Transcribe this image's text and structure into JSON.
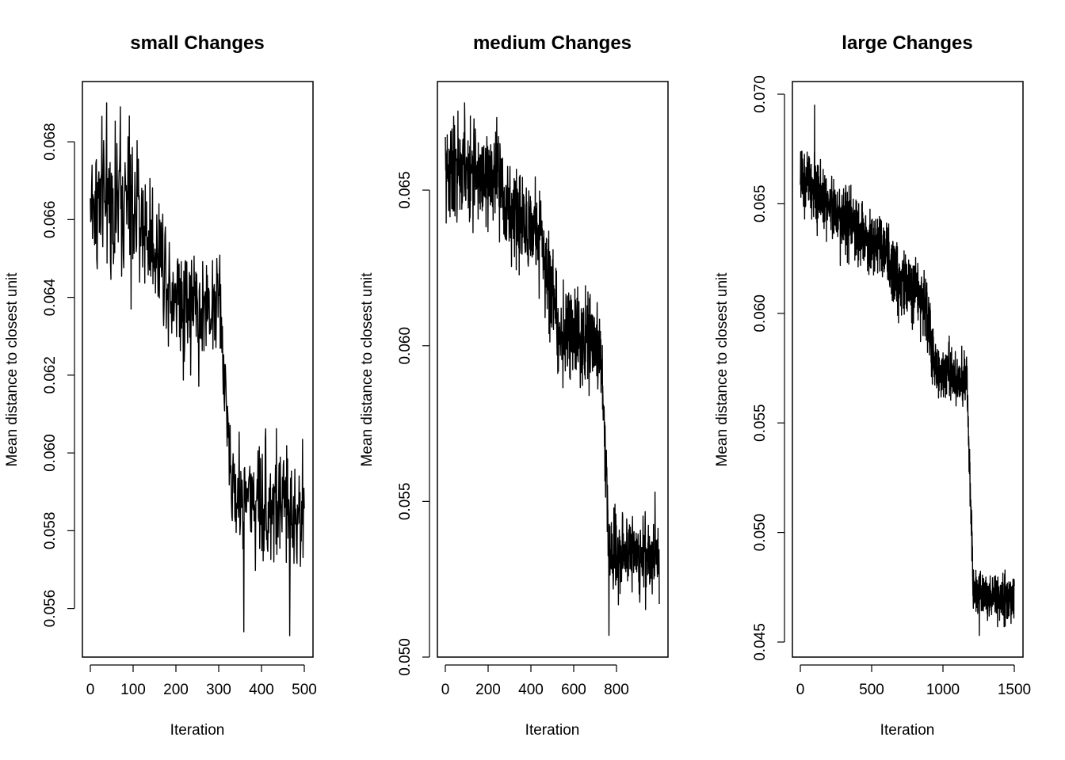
{
  "figure": {
    "background": "#ffffff",
    "line_color": "#000000"
  },
  "chart_data": [
    {
      "type": "line",
      "title": "small Changes",
      "xlabel": "Iteration",
      "ylabel": "Mean distance to closest unit",
      "x_ticks": [
        "0",
        "100",
        "200",
        "300",
        "400",
        "500"
      ],
      "y_ticks": [
        "0.056",
        "0.058",
        "0.060",
        "0.062",
        "0.064",
        "0.066",
        "0.068"
      ],
      "xlim": [
        0,
        500
      ],
      "ylim": [
        0.0553,
        0.069
      ],
      "grid": false,
      "n_points": 500,
      "series": [
        {
          "segments": [
            {
              "x0": 0,
              "x1": 100,
              "y0": 0.0664,
              "y1": 0.0664,
              "sd": 0.0009
            },
            {
              "x0": 100,
              "x1": 180,
              "y0": 0.0663,
              "y1": 0.0648,
              "sd": 0.0008
            },
            {
              "x0": 180,
              "x1": 260,
              "y0": 0.0645,
              "y1": 0.0635,
              "sd": 0.0009
            },
            {
              "x0": 260,
              "x1": 305,
              "y0": 0.0637,
              "y1": 0.064,
              "sd": 0.0007
            },
            {
              "x0": 305,
              "x1": 330,
              "y0": 0.063,
              "y1": 0.0595,
              "sd": 0.0006
            },
            {
              "x0": 330,
              "x1": 500,
              "y0": 0.059,
              "y1": 0.0585,
              "sd": 0.0008
            }
          ],
          "extremes": [
            {
              "x": 38,
              "y": 0.069
            },
            {
              "x": 70,
              "y": 0.0689
            },
            {
              "x": 95,
              "y": 0.0637
            },
            {
              "x": 359,
              "y": 0.0554
            },
            {
              "x": 466,
              "y": 0.0553
            }
          ]
        }
      ]
    },
    {
      "type": "line",
      "title": "medium Changes",
      "xlabel": "Iteration",
      "ylabel": "Mean distance to closest unit",
      "x_ticks": [
        "0",
        "200",
        "400",
        "600",
        "800"
      ],
      "y_ticks": [
        "0.050",
        "0.055",
        "0.060",
        "0.065"
      ],
      "xlim": [
        0,
        1000
      ],
      "ylim": [
        0.05,
        0.0678
      ],
      "grid": false,
      "n_points": 1000,
      "series": [
        {
          "segments": [
            {
              "x0": 0,
              "x1": 270,
              "y0": 0.0657,
              "y1": 0.0653,
              "sd": 0.0008
            },
            {
              "x0": 270,
              "x1": 450,
              "y0": 0.0645,
              "y1": 0.0635,
              "sd": 0.0007
            },
            {
              "x0": 450,
              "x1": 520,
              "y0": 0.063,
              "y1": 0.0612,
              "sd": 0.0007
            },
            {
              "x0": 520,
              "x1": 725,
              "y0": 0.0605,
              "y1": 0.06,
              "sd": 0.0007
            },
            {
              "x0": 725,
              "x1": 760,
              "y0": 0.06,
              "y1": 0.0545,
              "sd": 0.0006
            },
            {
              "x0": 760,
              "x1": 1000,
              "y0": 0.0535,
              "y1": 0.0532,
              "sd": 0.0006
            }
          ],
          "extremes": [
            {
              "x": 90,
              "y": 0.0678
            },
            {
              "x": 765,
              "y": 0.0507
            },
            {
              "x": 980,
              "y": 0.0553
            }
          ]
        }
      ]
    },
    {
      "type": "line",
      "title": "large Changes",
      "xlabel": "Iteration",
      "ylabel": "Mean distance to closest unit",
      "x_ticks": [
        "0",
        "500",
        "1000",
        "1500"
      ],
      "y_ticks": [
        "0.045",
        "0.050",
        "0.055",
        "0.060",
        "0.065",
        "0.070"
      ],
      "xlim": [
        0,
        1500
      ],
      "ylim": [
        0.045,
        0.07
      ],
      "grid": false,
      "n_points": 1500,
      "series": [
        {
          "segments": [
            {
              "x0": 0,
              "x1": 620,
              "y0": 0.0662,
              "y1": 0.0625,
              "sd": 0.0007
            },
            {
              "x0": 620,
              "x1": 880,
              "y0": 0.062,
              "y1": 0.0605,
              "sd": 0.0008
            },
            {
              "x0": 880,
              "x1": 940,
              "y0": 0.0605,
              "y1": 0.0575,
              "sd": 0.0007
            },
            {
              "x0": 940,
              "x1": 1170,
              "y0": 0.0575,
              "y1": 0.0568,
              "sd": 0.0006
            },
            {
              "x0": 1170,
              "x1": 1210,
              "y0": 0.0565,
              "y1": 0.048,
              "sd": 0.0005
            },
            {
              "x0": 1210,
              "x1": 1500,
              "y0": 0.0472,
              "y1": 0.047,
              "sd": 0.0005
            }
          ],
          "extremes": [
            {
              "x": 100,
              "y": 0.0695
            },
            {
              "x": 1255,
              "y": 0.0453
            }
          ]
        }
      ]
    }
  ]
}
